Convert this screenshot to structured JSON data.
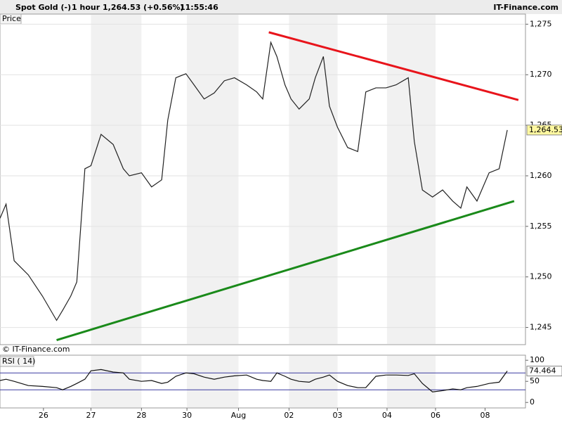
{
  "header": {
    "instrument": "Spot Gold (-)",
    "period": "1 hour",
    "quote": "1,264.53 (+0.56%)",
    "time": "11:55:46",
    "brand": "IT-Finance.com",
    "copyright": "© IT-Finance.com"
  },
  "chart_data": [
    {
      "type": "line",
      "title": "Price",
      "x": [
        0,
        3,
        7,
        14,
        21,
        28,
        31,
        35,
        38,
        42,
        45,
        50,
        56,
        61,
        64,
        70,
        75,
        80,
        83,
        87,
        92,
        96,
        101,
        106,
        111,
        116,
        122,
        127,
        130,
        134,
        137,
        141,
        144,
        148,
        153,
        156,
        160,
        163,
        167,
        172,
        177,
        181,
        186,
        191,
        196,
        202,
        205,
        209,
        214,
        219,
        224,
        228,
        231,
        236,
        242,
        247,
        251
      ],
      "series": [
        {
          "name": "Price",
          "color": "#222222",
          "values": [
            1255.8,
            1257.2,
            1251.6,
            1250.2,
            1248.1,
            1245.7,
            1246.7,
            1248.1,
            1249.5,
            1260.7,
            1261.0,
            1264.1,
            1263.1,
            1260.7,
            1260.0,
            1260.3,
            1258.9,
            1259.6,
            1265.5,
            1269.7,
            1270.1,
            1269.0,
            1267.6,
            1268.2,
            1269.4,
            1269.7,
            1269.0,
            1268.3,
            1267.6,
            1273.2,
            1271.8,
            1269.0,
            1267.6,
            1266.6,
            1267.6,
            1269.7,
            1271.8,
            1266.9,
            1264.8,
            1262.8,
            1262.4,
            1268.3,
            1268.7,
            1268.7,
            1269.0,
            1269.7,
            1263.4,
            1258.6,
            1257.9,
            1258.6,
            1257.5,
            1256.8,
            1258.9,
            1257.5,
            1260.3,
            1260.7,
            1264.53
          ]
        }
      ],
      "trendlines": [
        {
          "color": "#e8141b",
          "x": [
            133,
            256.5
          ],
          "y": [
            1274.2,
            1267.5
          ]
        },
        {
          "color": "#1a8a1a",
          "x": [
            28,
            254.4
          ],
          "y": [
            1243.75,
            1257.5
          ]
        }
      ],
      "last": {
        "value": 1264.53,
        "label": "1,264.53"
      },
      "xlim": [
        0,
        260
      ],
      "ylim": [
        1243.3,
        1276
      ],
      "yticks": [
        {
          "value": 1245,
          "label": "1,245"
        },
        {
          "value": 1250,
          "label": "1,250"
        },
        {
          "value": 1255,
          "label": "1,255"
        },
        {
          "value": 1260,
          "label": "1,260"
        },
        {
          "value": 1265,
          "label": "1,265"
        },
        {
          "value": 1270,
          "label": "1,270"
        },
        {
          "value": 1275,
          "label": "1,275"
        }
      ],
      "grid": true
    },
    {
      "type": "line",
      "title": "RSI ( 14)",
      "x": [
        0,
        3,
        7,
        14,
        21,
        28,
        31,
        35,
        38,
        42,
        45,
        50,
        56,
        61,
        64,
        70,
        75,
        80,
        83,
        87,
        92,
        96,
        101,
        106,
        111,
        116,
        122,
        127,
        130,
        134,
        137,
        141,
        144,
        148,
        153,
        156,
        160,
        163,
        167,
        172,
        177,
        181,
        186,
        191,
        196,
        202,
        205,
        209,
        214,
        219,
        224,
        228,
        231,
        236,
        242,
        247,
        251
      ],
      "series": [
        {
          "name": "RSI ( 14)",
          "color": "#111111",
          "values": [
            52,
            55,
            50,
            40,
            38,
            35,
            30,
            38,
            45,
            55,
            75,
            78,
            72,
            70,
            55,
            50,
            52,
            45,
            48,
            62,
            70,
            68,
            60,
            55,
            60,
            63,
            65,
            55,
            52,
            50,
            70,
            62,
            55,
            50,
            48,
            55,
            60,
            65,
            50,
            40,
            35,
            35,
            62,
            65,
            65,
            64,
            68,
            45,
            25,
            28,
            32,
            30,
            35,
            38,
            45,
            48,
            74.464
          ]
        }
      ],
      "last": {
        "value": 74.464,
        "label": "74.464"
      },
      "levels": [
        70,
        30
      ],
      "level_color": "#3a3aa0",
      "xlim": [
        0,
        260
      ],
      "ylim": [
        -13,
        112
      ],
      "yticks": [
        0,
        50,
        100
      ],
      "xticks": [
        {
          "value": 21.5,
          "label": "26"
        },
        {
          "value": 45,
          "label": "27"
        },
        {
          "value": 70,
          "label": "28"
        },
        {
          "value": 92.5,
          "label": "30"
        },
        {
          "value": 118,
          "label": "Aug"
        },
        {
          "value": 143,
          "label": "02"
        },
        {
          "value": 167,
          "label": "03"
        },
        {
          "value": 191.5,
          "label": "04"
        },
        {
          "value": 215.5,
          "label": "06"
        },
        {
          "value": 240,
          "label": "08"
        }
      ]
    }
  ]
}
